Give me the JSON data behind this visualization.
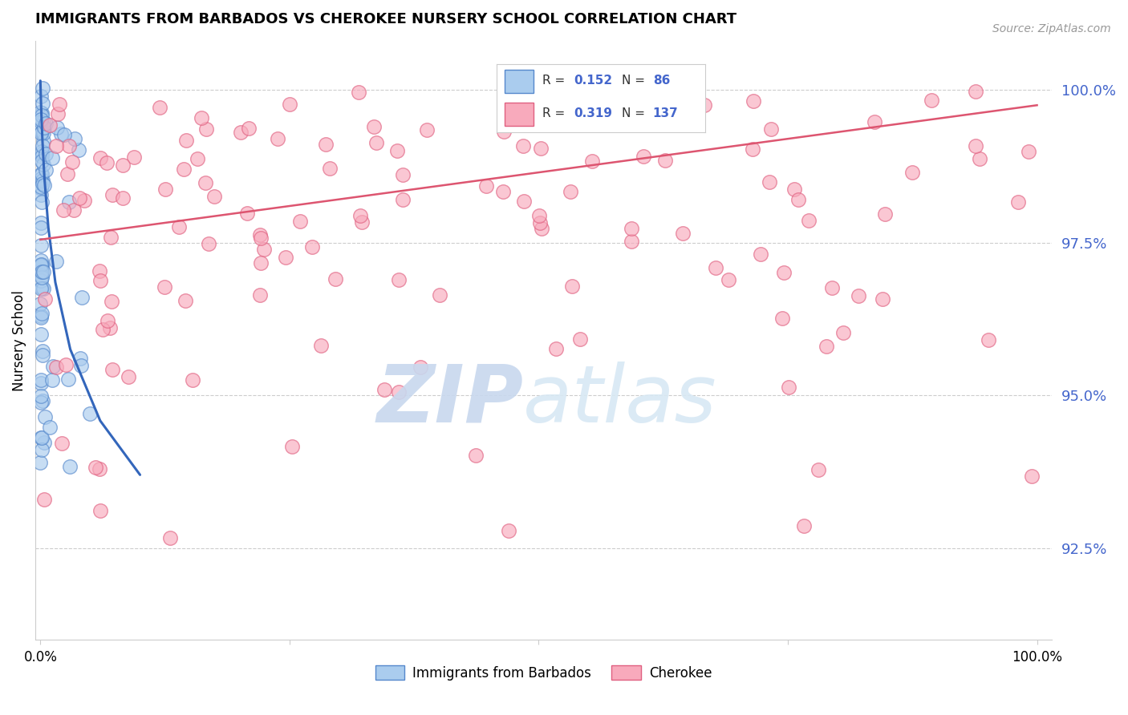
{
  "title": "IMMIGRANTS FROM BARBADOS VS CHEROKEE NURSERY SCHOOL CORRELATION CHART",
  "source": "Source: ZipAtlas.com",
  "ylabel": "Nursery School",
  "ytick_values": [
    92.5,
    95.0,
    97.5,
    100.0
  ],
  "ymin": 91.0,
  "ymax": 100.8,
  "xmin": -0.5,
  "xmax": 101.5,
  "blue_face_color": "#AACCEE",
  "blue_edge_color": "#5588CC",
  "pink_face_color": "#F8AABC",
  "pink_edge_color": "#E06080",
  "blue_trend_color": "#3366BB",
  "pink_trend_color": "#DD5570",
  "right_axis_color": "#4466CC",
  "legend_text_color": "#4466CC",
  "legend_label_color": "#333333",
  "watermark_zip_color": "#C8D8EE",
  "watermark_atlas_color": "#D8E8F4",
  "n_blue": 86,
  "n_pink": 137,
  "blue_r": "0.152",
  "blue_n": "86",
  "pink_r": "0.319",
  "pink_n": "137",
  "scatter_size": 160,
  "scatter_alpha": 0.65
}
